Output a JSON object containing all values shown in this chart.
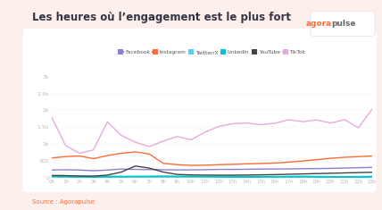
{
  "title": "Les heures où l’engagement est le plus fort",
  "source": "Source : Agorapulse",
  "bg_color": "#fdf0ec",
  "chart_bg": "#ffffff",
  "hours": [
    0,
    1,
    2,
    3,
    4,
    5,
    6,
    7,
    8,
    9,
    10,
    11,
    12,
    13,
    14,
    15,
    16,
    17,
    18,
    19,
    20,
    21,
    22,
    23
  ],
  "series": {
    "Facebook": {
      "color": "#8b7fd4",
      "lw": 1.0,
      "data": [
        220,
        230,
        220,
        200,
        220,
        250,
        240,
        235,
        230,
        225,
        225,
        230,
        240,
        240,
        245,
        250,
        250,
        255,
        260,
        265,
        270,
        280,
        290,
        300
      ]
    },
    "Instagram": {
      "color": "#ff6b35",
      "lw": 1.0,
      "data": [
        580,
        620,
        640,
        560,
        650,
        720,
        760,
        700,
        420,
        380,
        360,
        365,
        380,
        390,
        405,
        415,
        430,
        455,
        490,
        530,
        570,
        600,
        620,
        640
      ]
    },
    "Twitter/X": {
      "color": "#5bc8f5",
      "lw": 1.0,
      "data": [
        40,
        35,
        28,
        22,
        32,
        28,
        25,
        22,
        20,
        22,
        28,
        32,
        35,
        32,
        28,
        25,
        22,
        24,
        26,
        28,
        24,
        22,
        26,
        30
      ]
    },
    "LinkedIn": {
      "color": "#00c5cc",
      "lw": 1.5,
      "data": [
        25,
        22,
        20,
        16,
        20,
        22,
        25,
        28,
        32,
        28,
        25,
        22,
        20,
        18,
        16,
        18,
        20,
        22,
        24,
        20,
        16,
        14,
        16,
        20
      ]
    },
    "YouTube": {
      "color": "#444444",
      "lw": 1.0,
      "data": [
        60,
        55,
        45,
        40,
        70,
        160,
        340,
        280,
        160,
        90,
        75,
        70,
        68,
        68,
        72,
        78,
        85,
        95,
        105,
        115,
        125,
        135,
        145,
        155
      ]
    },
    "TikTok": {
      "color": "#e8aadd",
      "lw": 1.0,
      "data": [
        1800,
        950,
        720,
        820,
        1650,
        1250,
        1050,
        920,
        1080,
        1220,
        1120,
        1350,
        1520,
        1600,
        1620,
        1570,
        1610,
        1720,
        1660,
        1710,
        1620,
        1720,
        1480,
        2050
      ]
    }
  },
  "ylim": [
    0,
    3000
  ],
  "yticks": [
    0,
    500,
    1000,
    1500,
    2000,
    2500,
    3000
  ],
  "ytick_labels": [
    "0",
    "500",
    "1k",
    "1.5k",
    "2k",
    "2.5k",
    "3k"
  ],
  "xtick_labels": [
    "0h",
    "1h",
    "2h",
    "3h",
    "4h",
    "5h",
    "6h",
    "7h",
    "8h",
    "9h",
    "10h",
    "11h",
    "12h",
    "13h",
    "14h",
    "15h",
    "16h",
    "17h",
    "18h",
    "19h",
    "20h",
    "21h",
    "22h",
    "23h"
  ],
  "logo_agora": "agora",
  "logo_pulse": "pulse",
  "logo_color_agora": "#ff6b35",
  "logo_color_pulse": "#666666",
  "title_color": "#333344",
  "title_fontsize": 8.5
}
